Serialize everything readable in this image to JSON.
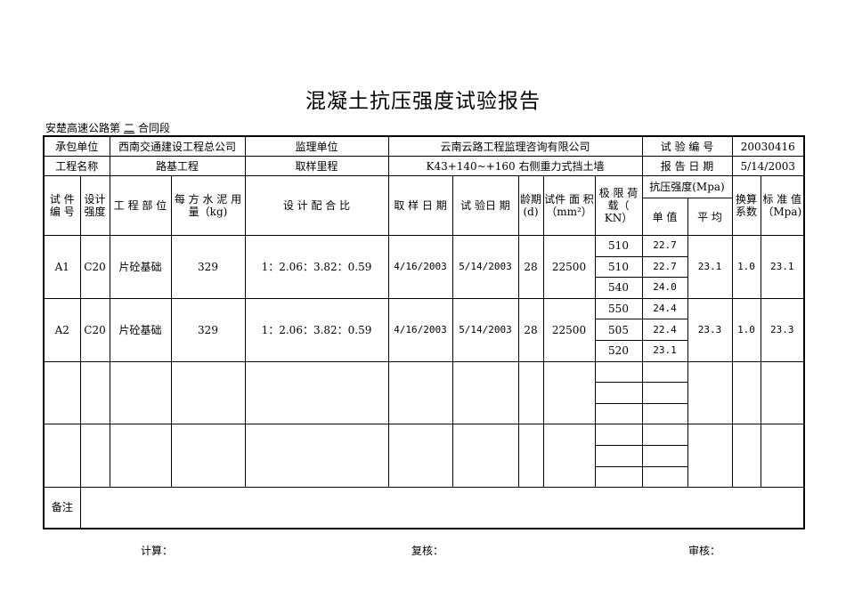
{
  "title": "混凝土抗压强度试验报告",
  "subtitle": {
    "prefix": "安楚高速公路第",
    "section": "二",
    "suffix": "合同段"
  },
  "info": {
    "contractor_label": "承包单位",
    "contractor": "西南交通建设工程总公司",
    "supervisor_label": "监理单位",
    "supervisor": "云南云路工程监理咨询有限公司",
    "test_no_label": "试 验 编 号",
    "test_no": "20030416",
    "project_label": "工程名称",
    "project": "路基工程",
    "mileage_label": "取样里程",
    "mileage": "K43+140~+160  右侧重力式挡土墙",
    "report_date_label": "报 告 日 期",
    "report_date": "5/14/2003"
  },
  "headers": {
    "specimen_no": "试 件 编 号",
    "design_strength": "设计强度",
    "part": "工 程 部 位",
    "cement": "每 方 水 泥 用 量（kg)",
    "mix": "设 计 配 合 比",
    "sample_date": "取 样 日 期",
    "test_date": "试 验日 期",
    "age": "龄期(d)",
    "area": "试件 面 积（mm²）",
    "load": "极 限 荷 载（ KN）",
    "strength": "抗压强度(Mpa)",
    "single": "单 值",
    "average": "平 均",
    "factor": "换算系数",
    "standard": "标 准 值（Mpa)"
  },
  "samples": [
    {
      "no": "A1",
      "grade": "C20",
      "part": "片砼基础",
      "cement": "329",
      "mix": "1：2.06：3.82：0.59",
      "sample_date": "4/16/2003",
      "test_date": "5/14/2003",
      "age": "28",
      "area": "22500",
      "loads": [
        "510",
        "510",
        "540"
      ],
      "singles": [
        "22.7",
        "22.7",
        "24.0"
      ],
      "average": "23.1",
      "factor": "1.0",
      "standard": "23.1"
    },
    {
      "no": "A2",
      "grade": "C20",
      "part": "片砼基础",
      "cement": "329",
      "mix": "1：2.06：3.82：0.59",
      "sample_date": "4/16/2003",
      "test_date": "5/14/2003",
      "age": "28",
      "area": "22500",
      "loads": [
        "550",
        "505",
        "520"
      ],
      "singles": [
        "24.4",
        "22.4",
        "23.1"
      ],
      "average": "23.3",
      "factor": "1.0",
      "standard": "23.3"
    }
  ],
  "remarks_label": "备注",
  "footer": {
    "calc": "计算：",
    "review": "复核：",
    "audit": "审核："
  }
}
